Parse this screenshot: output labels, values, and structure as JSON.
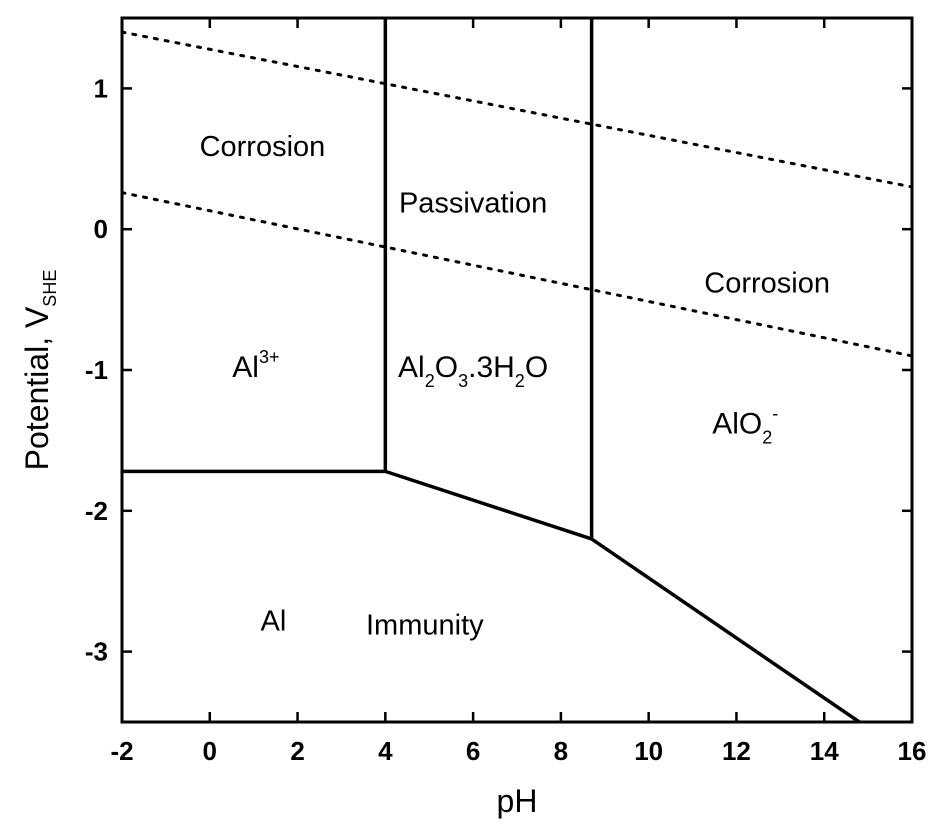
{
  "chart_data": {
    "type": "line",
    "xlabel": "pH",
    "ylabel": {
      "main": "Potential, V",
      "sub": "SHE"
    },
    "xlim": [
      -2,
      16
    ],
    "ylim": [
      -3.5,
      1.5
    ],
    "x_ticks": [
      -2,
      0,
      2,
      4,
      6,
      8,
      10,
      12,
      14,
      16
    ],
    "y_ticks": [
      1,
      0,
      -1,
      -2,
      -3
    ],
    "x_tick_labels": [
      "-2",
      "0",
      "2",
      "4",
      "6",
      "8",
      "10",
      "12",
      "14",
      "16"
    ],
    "y_tick_labels": [
      "1",
      "0",
      "-1",
      "-2",
      "-3"
    ],
    "grid": false,
    "series": [
      {
        "style": "solid",
        "points": [
          [
            -2,
            -1.72
          ],
          [
            4,
            -1.72
          ]
        ]
      },
      {
        "style": "solid",
        "points": [
          [
            4,
            -1.72
          ],
          [
            8.7,
            -2.2
          ]
        ]
      },
      {
        "style": "solid",
        "points": [
          [
            8.7,
            -2.2
          ],
          [
            14.8,
            -3.5
          ]
        ]
      },
      {
        "style": "solid",
        "points": [
          [
            4,
            -1.72
          ],
          [
            4,
            1.5
          ]
        ]
      },
      {
        "style": "solid",
        "points": [
          [
            8.7,
            -2.2
          ],
          [
            8.7,
            1.5
          ]
        ]
      },
      {
        "style": "dotted",
        "points": [
          [
            -2,
            1.4
          ],
          [
            16,
            0.3
          ]
        ]
      },
      {
        "style": "dotted",
        "points": [
          [
            -2,
            0.26
          ],
          [
            16,
            -0.9
          ]
        ]
      }
    ],
    "annotations": [
      {
        "text": "Corrosion",
        "x": 1.2,
        "y": 0.52,
        "kind": "region"
      },
      {
        "text": "Passivation",
        "x": 6.0,
        "y": 0.12,
        "kind": "region"
      },
      {
        "text": "Corrosion",
        "x": 12.7,
        "y": -0.45,
        "kind": "region"
      },
      {
        "text": "Immunity",
        "x": 4.9,
        "y": -2.88,
        "kind": "region"
      },
      {
        "text": "Al",
        "x": 1.45,
        "y": -2.85,
        "kind": "region"
      },
      {
        "kind": "species",
        "x": 1.05,
        "y": -1.05,
        "parts": [
          {
            "t": "Al",
            "s": "n"
          },
          {
            "t": "3+",
            "s": "sup"
          }
        ]
      },
      {
        "kind": "species",
        "x": 6.0,
        "y": -1.05,
        "parts": [
          {
            "t": "Al",
            "s": "n"
          },
          {
            "t": "2",
            "s": "sub"
          },
          {
            "t": "O",
            "s": "n"
          },
          {
            "t": "3",
            "s": "sub"
          },
          {
            "t": ".3H",
            "s": "n"
          },
          {
            "t": "2",
            "s": "sub"
          },
          {
            "t": "O",
            "s": "n"
          }
        ]
      },
      {
        "kind": "species",
        "x": 12.2,
        "y": -1.45,
        "parts": [
          {
            "t": "AlO",
            "s": "n"
          },
          {
            "t": "2",
            "s": "sub"
          },
          {
            "t": "-",
            "s": "sup"
          }
        ]
      }
    ]
  }
}
